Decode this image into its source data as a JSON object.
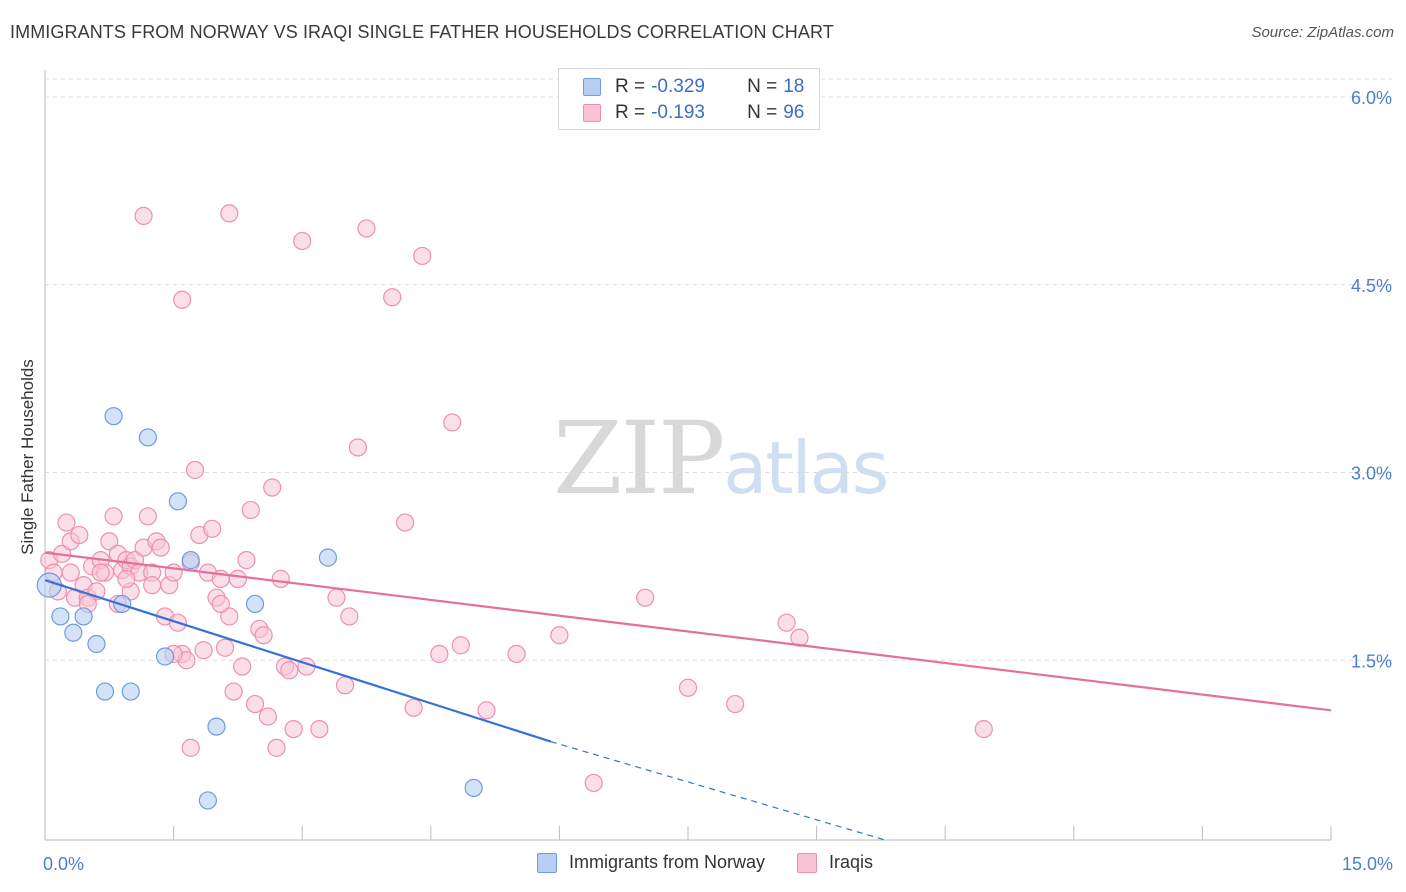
{
  "title": "IMMIGRANTS FROM NORWAY VS IRAQI SINGLE FATHER HOUSEHOLDS CORRELATION CHART",
  "source": "Source: ZipAtlas.com",
  "watermark": {
    "zip": "ZIP",
    "atlas": "atlas"
  },
  "colors": {
    "norway": "#6f9be0",
    "norway_fill": "#b8cff3",
    "iraqis": "#ef8fb0",
    "iraqis_fill": "#f8c4d5",
    "norway_line": "#3672d4",
    "iraqis_line": "#e5709a",
    "axis_label": "#4a7fd0"
  },
  "legend": {
    "norway": {
      "r_label": "R = ",
      "r_value": "-0.329",
      "n_label": "N = ",
      "n_value": "18"
    },
    "iraqis": {
      "r_label": "R = ",
      "r_value": "-0.193",
      "n_label": "N = ",
      "n_value": "96"
    }
  },
  "chart_data": {
    "type": "scatter",
    "title": "IMMIGRANTS FROM NORWAY VS IRAQI SINGLE FATHER HOUSEHOLDS CORRELATION CHART",
    "xlabel": "",
    "ylabel": "Single Father Households",
    "xlim": [
      0,
      15
    ],
    "ylim": [
      0,
      6.2
    ],
    "x_tick_labels": [
      "0.0%",
      "15.0%"
    ],
    "y_ticks": [
      1.5,
      3.0,
      4.5,
      6.0
    ],
    "y_tick_labels": [
      "1.5%",
      "3.0%",
      "4.5%",
      "6.0%"
    ],
    "grid": true,
    "legend_labels": [
      "Immigrants from Norway",
      "Iraqis"
    ],
    "series": [
      {
        "name": "Immigrants from Norway",
        "points": [
          [
            0.05,
            2.1
          ],
          [
            0.18,
            1.85
          ],
          [
            0.33,
            1.72
          ],
          [
            0.45,
            1.85
          ],
          [
            0.6,
            1.63
          ],
          [
            0.7,
            1.25
          ],
          [
            0.8,
            3.45
          ],
          [
            0.9,
            1.95
          ],
          [
            1.0,
            1.25
          ],
          [
            1.2,
            3.28
          ],
          [
            1.4,
            1.53
          ],
          [
            1.55,
            2.77
          ],
          [
            1.7,
            2.3
          ],
          [
            1.9,
            0.38
          ],
          [
            2.0,
            0.97
          ],
          [
            2.45,
            1.95
          ],
          [
            3.3,
            2.32
          ],
          [
            5.0,
            0.48
          ]
        ],
        "trend": {
          "x": [
            0.0,
            5.9
          ],
          "y": [
            2.14,
            0.85
          ],
          "dashed_to": [
            9.8,
            -0.05
          ]
        }
      },
      {
        "name": "Iraqis",
        "points": [
          [
            0.05,
            2.3
          ],
          [
            0.1,
            2.2
          ],
          [
            0.15,
            2.05
          ],
          [
            0.2,
            2.35
          ],
          [
            0.25,
            2.6
          ],
          [
            0.3,
            2.45
          ],
          [
            0.35,
            2.0
          ],
          [
            0.4,
            2.5
          ],
          [
            0.45,
            2.1
          ],
          [
            0.5,
            2.0
          ],
          [
            0.55,
            2.25
          ],
          [
            0.6,
            2.05
          ],
          [
            0.65,
            2.3
          ],
          [
            0.7,
            2.2
          ],
          [
            0.75,
            2.45
          ],
          [
            0.8,
            2.65
          ],
          [
            0.85,
            2.35
          ],
          [
            0.9,
            2.22
          ],
          [
            0.95,
            2.3
          ],
          [
            1.0,
            2.25
          ],
          [
            1.05,
            2.3
          ],
          [
            1.1,
            2.2
          ],
          [
            1.15,
            2.4
          ],
          [
            1.2,
            2.65
          ],
          [
            1.25,
            2.2
          ],
          [
            1.3,
            2.45
          ],
          [
            1.35,
            2.4
          ],
          [
            1.4,
            1.85
          ],
          [
            1.45,
            2.1
          ],
          [
            1.5,
            2.2
          ],
          [
            1.55,
            1.8
          ],
          [
            1.6,
            1.55
          ],
          [
            1.65,
            1.5
          ],
          [
            1.7,
            2.28
          ],
          [
            1.75,
            3.02
          ],
          [
            1.8,
            2.5
          ],
          [
            1.85,
            1.58
          ],
          [
            1.9,
            2.2
          ],
          [
            1.95,
            2.55
          ],
          [
            2.0,
            2.0
          ],
          [
            2.05,
            2.15
          ],
          [
            2.1,
            1.6
          ],
          [
            2.15,
            1.85
          ],
          [
            2.2,
            1.25
          ],
          [
            2.25,
            2.15
          ],
          [
            2.3,
            1.45
          ],
          [
            2.35,
            2.3
          ],
          [
            2.4,
            2.7
          ],
          [
            2.45,
            1.15
          ],
          [
            2.5,
            1.75
          ],
          [
            2.55,
            1.7
          ],
          [
            2.6,
            1.05
          ],
          [
            2.65,
            2.88
          ],
          [
            2.7,
            0.8
          ],
          [
            2.75,
            2.15
          ],
          [
            2.8,
            1.45
          ],
          [
            2.85,
            1.42
          ],
          [
            2.9,
            0.95
          ],
          [
            3.0,
            4.85
          ],
          [
            3.05,
            1.45
          ],
          [
            3.2,
            0.95
          ],
          [
            3.4,
            2.0
          ],
          [
            3.5,
            1.3
          ],
          [
            3.55,
            1.85
          ],
          [
            3.65,
            3.2
          ],
          [
            3.75,
            4.95
          ],
          [
            4.05,
            4.4
          ],
          [
            4.2,
            2.6
          ],
          [
            4.3,
            1.12
          ],
          [
            4.4,
            4.73
          ],
          [
            4.6,
            1.55
          ],
          [
            4.75,
            3.4
          ],
          [
            4.85,
            1.62
          ],
          [
            5.15,
            1.1
          ],
          [
            5.5,
            1.55
          ],
          [
            6.0,
            1.7
          ],
          [
            6.4,
            0.52
          ],
          [
            7.0,
            2.0
          ],
          [
            7.5,
            1.28
          ],
          [
            8.05,
            1.15
          ],
          [
            8.65,
            1.8
          ],
          [
            8.8,
            1.68
          ],
          [
            10.95,
            0.95
          ],
          [
            1.15,
            5.05
          ],
          [
            1.6,
            4.38
          ],
          [
            2.15,
            5.07
          ],
          [
            1.7,
            0.8
          ],
          [
            0.5,
            1.95
          ],
          [
            1.0,
            2.05
          ],
          [
            1.5,
            1.55
          ],
          [
            0.85,
            1.95
          ],
          [
            1.25,
            2.1
          ],
          [
            2.05,
            1.95
          ],
          [
            0.3,
            2.2
          ],
          [
            0.65,
            2.2
          ],
          [
            0.95,
            2.15
          ]
        ],
        "trend": {
          "x": [
            0.0,
            15.0
          ],
          "y": [
            2.36,
            1.1
          ]
        }
      }
    ]
  }
}
